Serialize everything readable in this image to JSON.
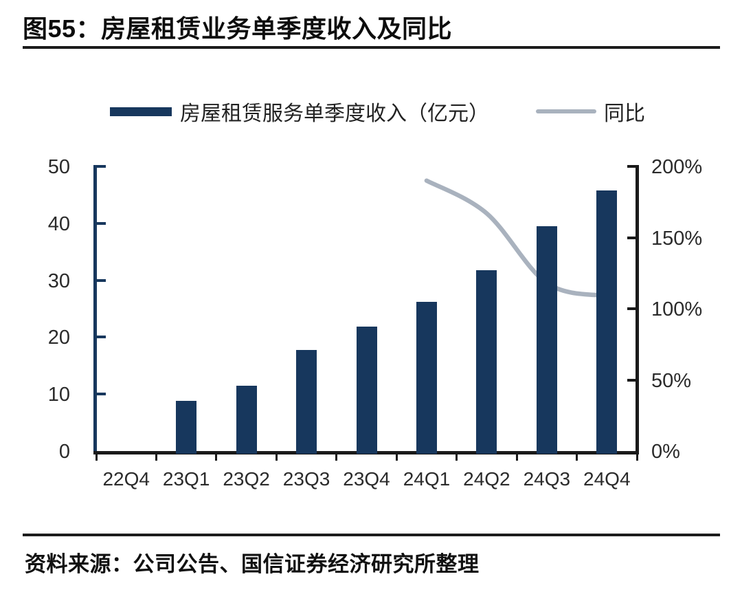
{
  "figure": {
    "title": "图55：房屋租赁业务单季度收入及同比",
    "source": "资料来源：公司公告、国信证券经济研究所整理"
  },
  "legend": {
    "bar_label": "房屋租赁服务单季度收入（亿元）",
    "line_label": "同比"
  },
  "colors": {
    "bar": "#17375D",
    "line": "#A9B2BE",
    "left_axis": "#17375D",
    "axis": "#1a1a1a",
    "text": "#111111"
  },
  "chart_data": {
    "type": "bar+line",
    "title": "房屋租赁业务单季度收入及同比",
    "categories": [
      "22Q4",
      "23Q1",
      "23Q2",
      "23Q3",
      "23Q4",
      "24Q1",
      "24Q2",
      "24Q3",
      "24Q4"
    ],
    "series": [
      {
        "name": "房屋租赁服务单季度收入（亿元）",
        "type": "bar",
        "axis": "left",
        "values": [
          null,
          8.8,
          11.5,
          17.8,
          21.8,
          26.2,
          31.8,
          39.5,
          45.8
        ]
      },
      {
        "name": "同比",
        "type": "line",
        "axis": "right",
        "unit": "%",
        "values": [
          null,
          null,
          null,
          null,
          null,
          190,
          167,
          118,
          109
        ]
      }
    ],
    "left_axis": {
      "min": 0,
      "max": 50,
      "tick_labels": [
        "0",
        "10",
        "20",
        "30",
        "40",
        "50"
      ]
    },
    "right_axis": {
      "min": 0,
      "max": 200,
      "tick_labels": [
        "0%",
        "50%",
        "100%",
        "150%",
        "200%"
      ]
    },
    "legend_position": "top",
    "grid": false
  }
}
